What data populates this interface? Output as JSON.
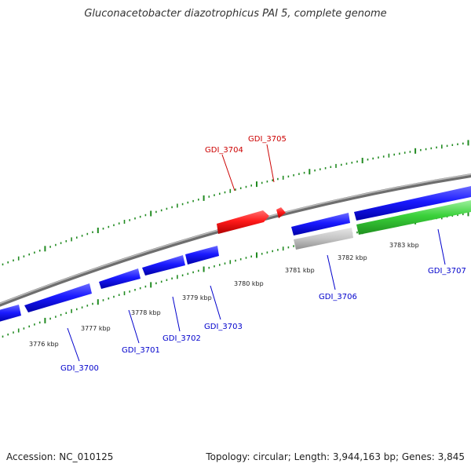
{
  "title": "Gluconacetobacter diazotrophicus PAI 5, complete genome",
  "footer": {
    "accession": "Accession: NC_010125",
    "topology": "Topology: circular; Length: 3,944,163 bp; Genes: 3,845"
  },
  "colors": {
    "backbone": "#8c8c8c",
    "ticks": "#228b22",
    "forward_gene": "#ff0000",
    "reverse_gene": "#0000ee",
    "rna_gene": "#33cc33",
    "pseudo_gene": "#b3b3b3",
    "label_red": "#cc0000",
    "label_blue": "#0000cc"
  },
  "kbp_labels": [
    "3776 kbp",
    "3777 kbp",
    "3778 kbp",
    "3779 kbp",
    "3780 kbp",
    "3781 kbp",
    "3782 kbp",
    "3783 kbp"
  ],
  "genes": [
    {
      "name": "GDI_3700",
      "color": "blue"
    },
    {
      "name": "GDI_3701",
      "color": "blue"
    },
    {
      "name": "GDI_3702",
      "color": "blue"
    },
    {
      "name": "GDI_3703",
      "color": "blue"
    },
    {
      "name": "GDI_3704",
      "color": "red"
    },
    {
      "name": "GDI_3705",
      "color": "red"
    },
    {
      "name": "GDI_3706",
      "color": "blue"
    },
    {
      "name": "GDI_3707",
      "color": "blue"
    }
  ]
}
